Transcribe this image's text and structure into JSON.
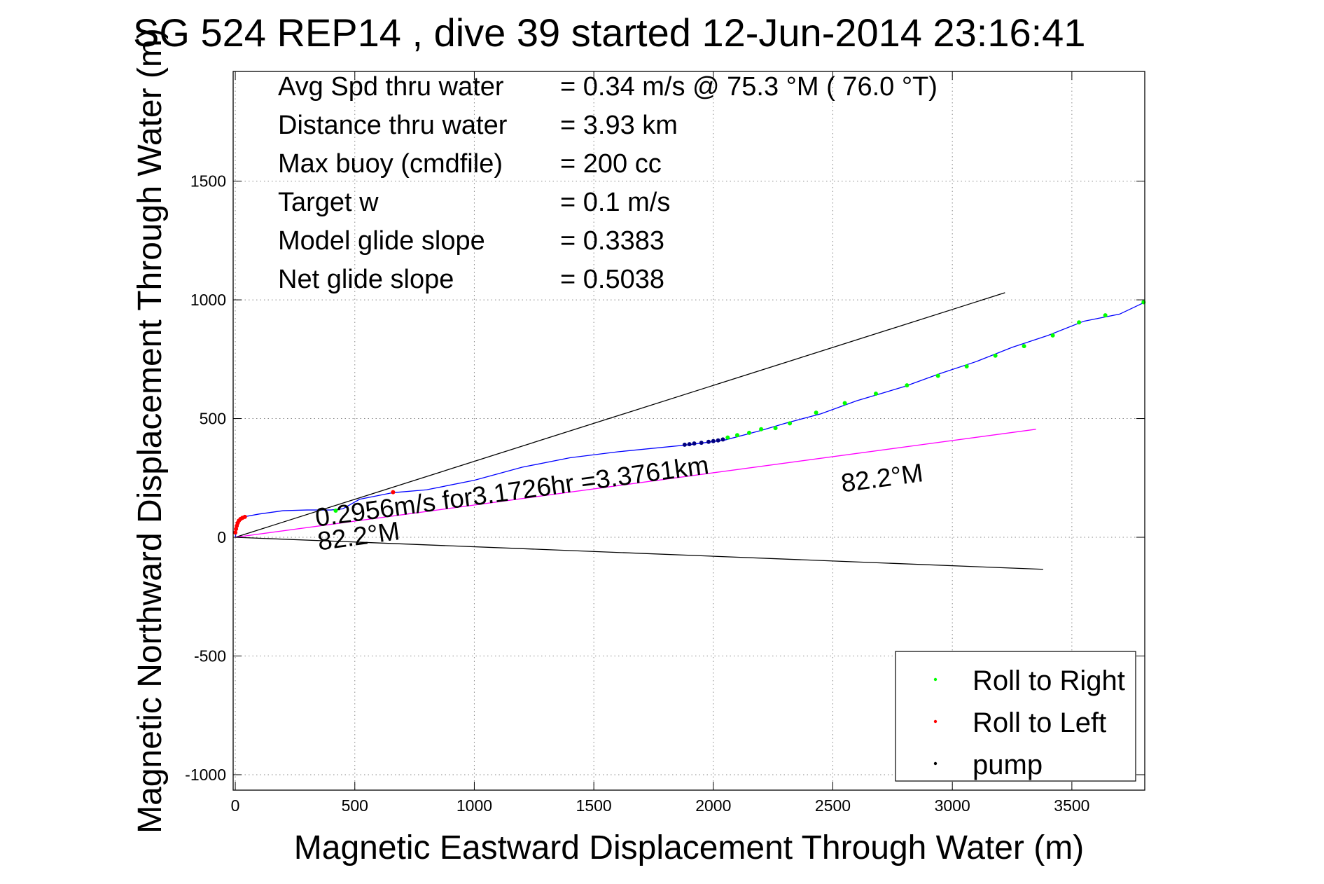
{
  "chart_data": {
    "type": "line",
    "title": "SG 524   REP14  , dive 39 started 12-Jun-2014 23:16:41",
    "xlabel": "Magnetic Eastward Displacement Through Water (m)",
    "ylabel": "Magnetic Northward Displacement Through Water (m)",
    "xlim": [
      -9,
      3805
    ],
    "ylim": [
      -1065,
      1962
    ],
    "xticks": [
      0,
      500,
      1000,
      1500,
      2000,
      2500,
      3000,
      3500
    ],
    "yticks": [
      -1000,
      -500,
      0,
      500,
      1000,
      1500
    ],
    "xtick_labels": [
      "0",
      "500",
      "1000",
      "1500",
      "2000",
      "2500",
      "3000",
      "3500"
    ],
    "ytick_labels": [
      "-1000",
      "-500",
      "0",
      "500",
      "1000",
      "1500"
    ],
    "grid": true,
    "info_lines": [
      {
        "label": "Avg Spd thru water",
        "value": "=  0.34 m/s @  75.3 °M ( 76.0 °T)"
      },
      {
        "label": "Distance thru water",
        "value": "=  3.93 km"
      },
      {
        "label": "Max buoy (cmdfile)",
        "value": "= 200 cc"
      },
      {
        "label": "Target w",
        "value": "= 0.1 m/s"
      },
      {
        "label": "Model glide slope",
        "value": "= 0.3383"
      },
      {
        "label": "Net glide slope",
        "value": "= 0.5038"
      }
    ],
    "series": [
      {
        "name": "track",
        "color": "#0000ff",
        "x": [
          0,
          5,
          15,
          30,
          45,
          100,
          200,
          300,
          400,
          450,
          520,
          660,
          800,
          1000,
          1200,
          1400,
          1600,
          1900,
          2050,
          2200,
          2300,
          2450,
          2600,
          2800,
          2950,
          3100,
          3250,
          3400,
          3550,
          3700,
          3805
        ],
        "y": [
          0,
          30,
          60,
          80,
          88,
          98,
          112,
          115,
          115,
          120,
          160,
          188,
          200,
          240,
          295,
          335,
          360,
          390,
          410,
          450,
          480,
          520,
          575,
          635,
          690,
          740,
          800,
          850,
          910,
          940,
          990
        ]
      },
      {
        "name": "upper bound",
        "color": "#000000",
        "x": [
          0,
          3220
        ],
        "y": [
          0,
          1030
        ]
      },
      {
        "name": "lower bound",
        "color": "#000000",
        "x": [
          0,
          3380
        ],
        "y": [
          0,
          -135
        ]
      },
      {
        "name": "net heading",
        "color": "#ff00ff",
        "x": [
          0,
          3350
        ],
        "y": [
          0,
          455
        ]
      },
      {
        "name": "Roll to Right",
        "color": "#00ff00",
        "marker": "dot",
        "x": [
          420,
          2060,
          2100,
          2150,
          2200,
          2260,
          2320,
          2430,
          2550,
          2680,
          2810,
          2940,
          3060,
          3180,
          3300,
          3420,
          3530,
          3640,
          3800
        ],
        "y": [
          112,
          420,
          430,
          440,
          455,
          460,
          480,
          525,
          565,
          605,
          640,
          680,
          720,
          765,
          805,
          850,
          905,
          935,
          990
        ]
      },
      {
        "name": "Roll to Left",
        "color": "#ff0000",
        "marker": "dot",
        "x": [
          0,
          3,
          6,
          10,
          15,
          22,
          30,
          40,
          660
        ],
        "y": [
          20,
          35,
          48,
          60,
          70,
          77,
          82,
          86,
          190
        ]
      },
      {
        "name": "pump",
        "color": "#000080",
        "marker": "dot",
        "x": [
          1880,
          1900,
          1920,
          1950,
          1980,
          2000,
          2020,
          2040
        ],
        "y": [
          390,
          392,
          395,
          398,
          402,
          405,
          408,
          412
        ]
      }
    ],
    "annotations": [
      {
        "text": "0.2956m/s for3.1726hr =3.3761km",
        "x": 340,
        "y": 45,
        "angle": -7.7
      },
      {
        "text": "82.2°M",
        "x": 350,
        "y": -55,
        "angle": -7.7
      },
      {
        "text": "82.2°M",
        "x": 2540,
        "y": 190,
        "angle": -7.7
      }
    ],
    "legend": {
      "placement": "bottom-right",
      "entries": [
        {
          "label": "Roll to Right",
          "color": "#00ff00"
        },
        {
          "label": "Roll to Left",
          "color": "#ff0000"
        },
        {
          "label": "pump",
          "color": "#000000"
        }
      ]
    }
  }
}
